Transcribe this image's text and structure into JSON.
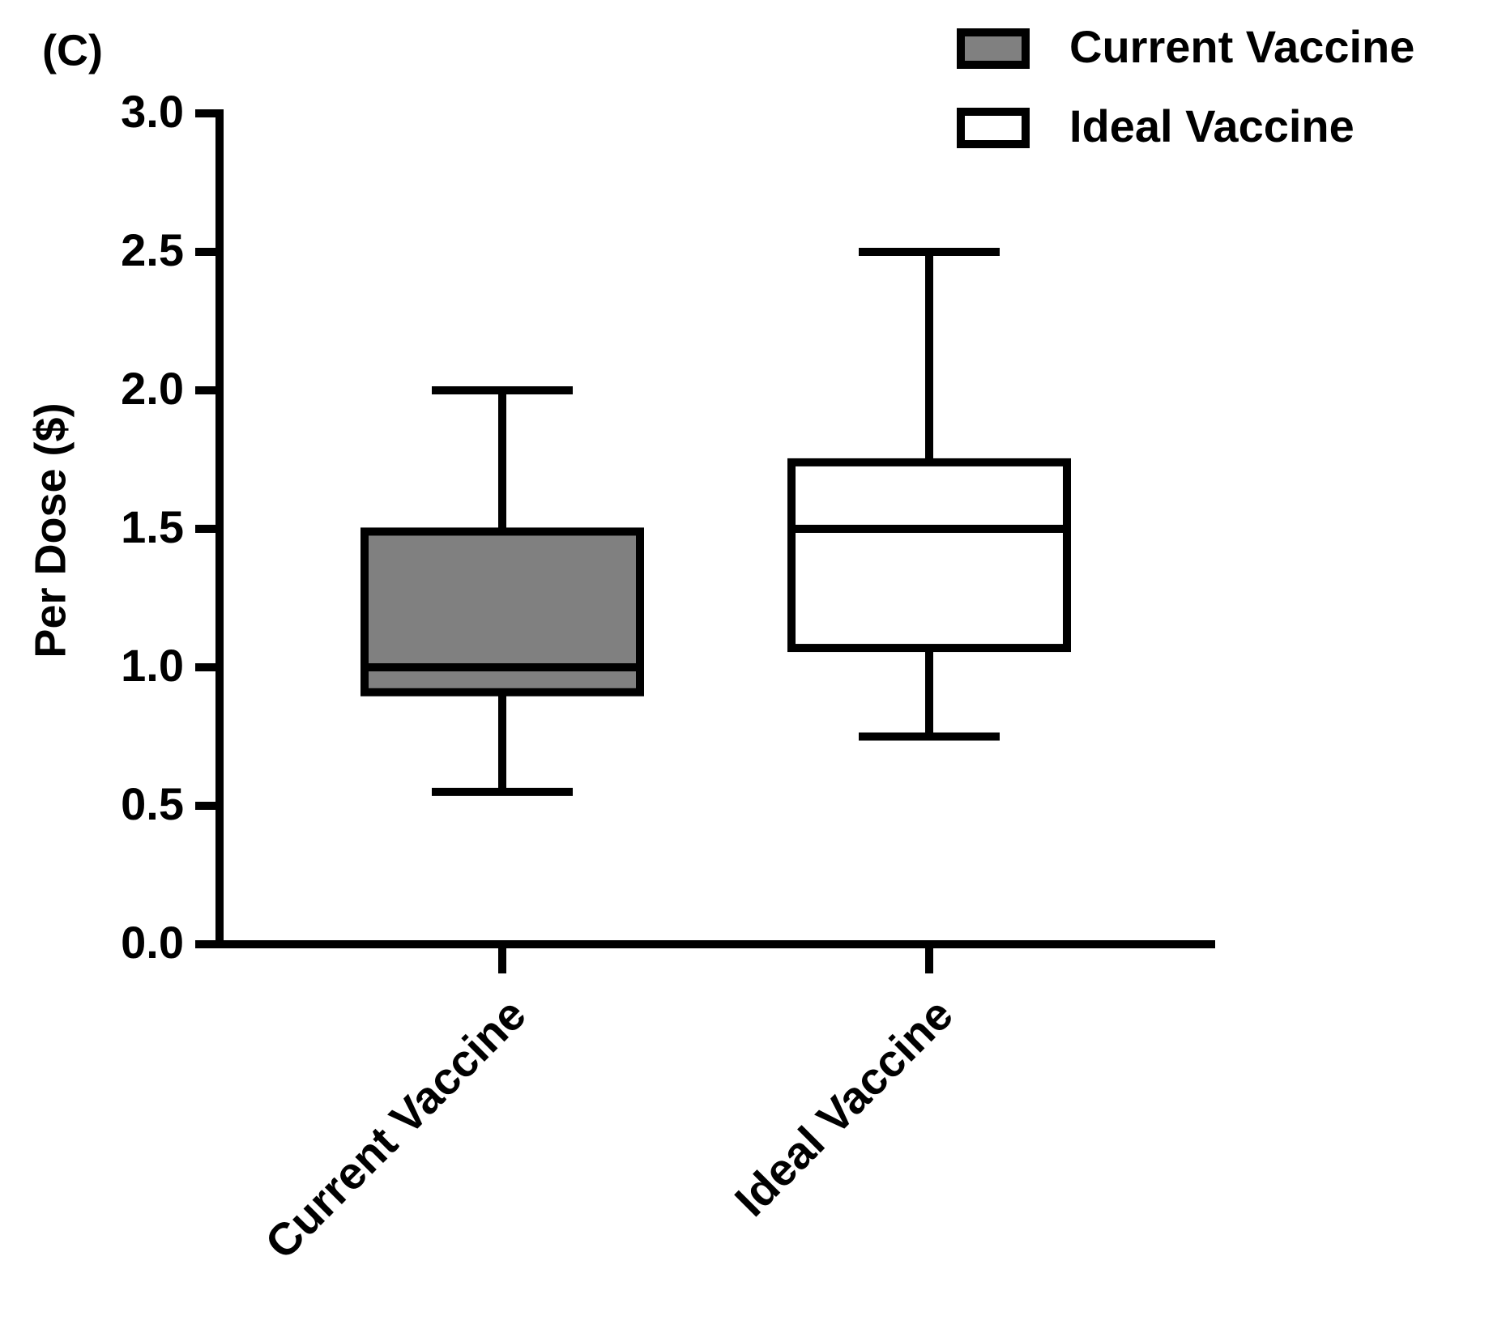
{
  "chart_data": {
    "type": "box",
    "panel_label": "(C)",
    "y_label": "Per Dose ($)",
    "categories": [
      "Current Vaccine",
      "Ideal Vaccine"
    ],
    "series": [
      {
        "name": "Current Vaccine",
        "color": "#808080",
        "min": 0.55,
        "q1": 0.91,
        "median": 1.0,
        "q3": 1.49,
        "max": 2.0
      },
      {
        "name": "Ideal Vaccine",
        "color": "#ffffff",
        "min": 0.75,
        "q1": 1.07,
        "median": 1.5,
        "q3": 1.74,
        "max": 2.5
      }
    ],
    "ylim": [
      0,
      3
    ],
    "yticks": [
      {
        "value": 0,
        "label": "0.0"
      },
      0.5,
      {
        "value": 1,
        "label": "1.0"
      },
      1.5,
      {
        "value": 2,
        "label": "2.0"
      },
      2.5,
      {
        "value": 3,
        "label": "3.0"
      }
    ],
    "legend": "top-right"
  }
}
